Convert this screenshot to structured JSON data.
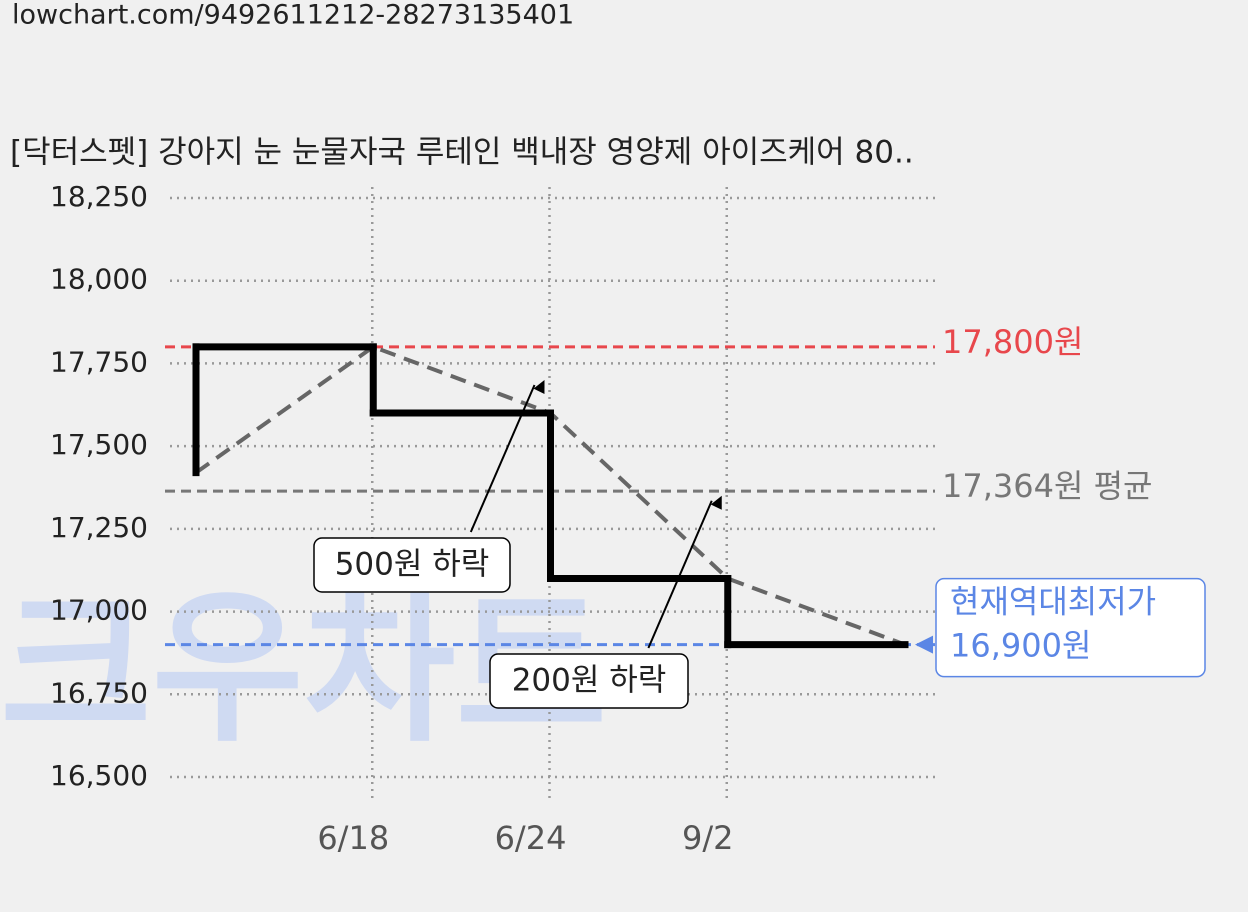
{
  "chart_data": {
    "type": "step-line",
    "source_url": "lowchart.com/9492611212-28273135401",
    "title": "[닥터스펫] 강아지 눈 눈물자국 루테인 백내장 영양제 아이즈케어 80..",
    "watermark": "크우차트",
    "categories": [
      null,
      "6/18",
      "6/24",
      "9/2",
      null
    ],
    "values": [
      17420,
      17800,
      17600,
      17100,
      16900
    ],
    "color": "#000000",
    "trend_color": "#666666",
    "ylim": [
      16500,
      18250
    ],
    "yticks": [
      {
        "value": 16500,
        "label": "16,500"
      },
      {
        "value": 16750,
        "label": "16,750"
      },
      {
        "value": 17000,
        "label": "17,000"
      },
      {
        "value": 17250,
        "label": "17,250"
      },
      {
        "value": 17500,
        "label": "17,500"
      },
      {
        "value": 17750,
        "label": "17,750"
      },
      {
        "value": 18000,
        "label": "18,000"
      },
      {
        "value": 18250,
        "label": "18,250"
      }
    ],
    "grid": true,
    "reference_lines": [
      {
        "value": 17800,
        "label": "17,800원",
        "color": "#e8474c"
      },
      {
        "value": 17364,
        "label": "17,364원 평균",
        "color": "#777777"
      },
      {
        "value": 16900,
        "title": "현재역대최저가",
        "label": "16,900원",
        "color": "#5b86e5"
      }
    ],
    "annotations": [
      {
        "text": "500원 하락"
      },
      {
        "text": "200원 하락"
      }
    ]
  }
}
